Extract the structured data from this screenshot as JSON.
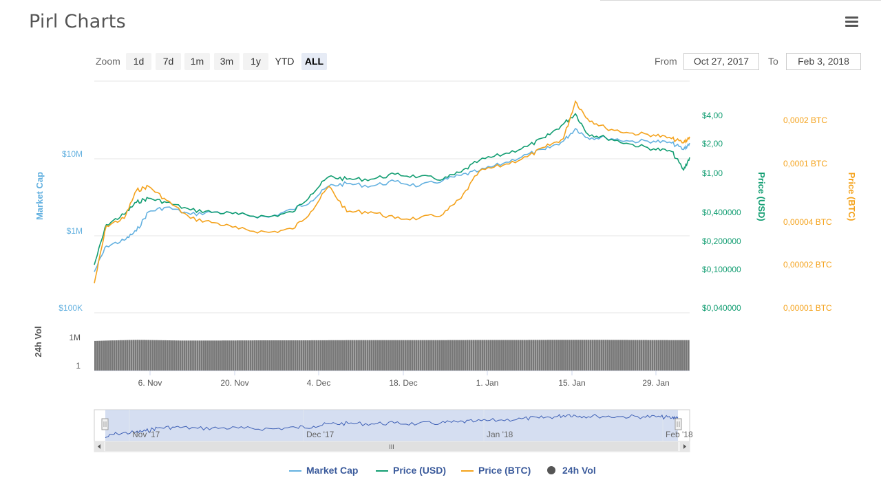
{
  "title": "Pirl Charts",
  "menu_icon": "hamburger-menu-icon",
  "zoom": {
    "label": "Zoom",
    "buttons": [
      "1d",
      "7d",
      "1m",
      "3m",
      "1y",
      "YTD",
      "ALL"
    ],
    "active": "ALL"
  },
  "range": {
    "from_label": "From",
    "from_value": "Oct 27, 2017",
    "to_label": "To",
    "to_value": "Feb 3, 2018"
  },
  "colors": {
    "market_cap": "#64b1e0",
    "price_usd": "#119d71",
    "price_btc": "#f4a21b",
    "volume": "#777777",
    "navigator_fill": "#c7d3ec",
    "legend_text": "#3a5a9b"
  },
  "axes": {
    "market_cap_title": "Market Cap",
    "market_cap_ticks": [
      "$10M",
      "$1M",
      "$100K"
    ],
    "price_usd_title": "Price (USD)",
    "price_usd_ticks": [
      "$4,00",
      "$2,00",
      "$1,00",
      "$0,400000",
      "$0,200000",
      "$0,100000",
      "$0,040000"
    ],
    "price_btc_title": "Price (BTC)",
    "price_btc_ticks": [
      "0,0002 BTC",
      "0,0001 BTC",
      "0,00004 BTC",
      "0,00002 BTC",
      "0,00001 BTC"
    ],
    "volume_title": "24h Vol",
    "volume_ticks": [
      "1M",
      "1"
    ],
    "x_ticks": [
      "6. Nov",
      "20. Nov",
      "4. Dec",
      "18. Dec",
      "1. Jan",
      "15. Jan",
      "29. Jan"
    ],
    "navigator_ticks": [
      "Nov '17",
      "Dec '17",
      "Jan '18",
      "Feb '18"
    ],
    "scrollbar_grip": "III"
  },
  "legend": [
    {
      "label": "Market Cap",
      "key": "market_cap"
    },
    {
      "label": "Price (USD)",
      "key": "price_usd"
    },
    {
      "label": "Price (BTC)",
      "key": "price_btc"
    },
    {
      "label": "24h Vol",
      "key": "volume"
    }
  ],
  "chart_data": {
    "type": "line",
    "x_range": [
      "2017-10-27",
      "2018-02-03"
    ],
    "y_scale": "log",
    "ylim_market_cap": [
      100000,
      50000000
    ],
    "ylim_price_usd": [
      0.04,
      8.0
    ],
    "ylim_price_btc": [
      1e-05,
      0.0004
    ],
    "series": [
      {
        "name": "Market Cap",
        "axis": "market_cap",
        "x": [
          "2017-10-27",
          "2017-10-29",
          "2017-11-01",
          "2017-11-03",
          "2017-11-05",
          "2017-11-08",
          "2017-11-12",
          "2017-11-16",
          "2017-11-20",
          "2017-11-25",
          "2017-11-29",
          "2017-12-02",
          "2017-12-05",
          "2017-12-08",
          "2017-12-12",
          "2017-12-16",
          "2017-12-20",
          "2017-12-24",
          "2017-12-27",
          "2017-12-30",
          "2018-01-03",
          "2018-01-07",
          "2018-01-10",
          "2018-01-13",
          "2018-01-15",
          "2018-01-17",
          "2018-01-20",
          "2018-01-24",
          "2018-01-28",
          "2018-01-31",
          "2018-02-02",
          "2018-02-03"
        ],
        "values": [
          300000,
          600000,
          700000,
          900000,
          1500000,
          1700000,
          1400000,
          1500000,
          1400000,
          1300000,
          1600000,
          2000000,
          3000000,
          3200000,
          3000000,
          3400000,
          3000000,
          3500000,
          4000000,
          4500000,
          5500000,
          7000000,
          8000000,
          10000000,
          14000000,
          11000000,
          11000000,
          10000000,
          10000000,
          9500000,
          8000000,
          9500000
        ]
      },
      {
        "name": "Price (USD)",
        "axis": "price_usd",
        "x": [
          "2017-10-27",
          "2017-10-29",
          "2017-11-01",
          "2017-11-03",
          "2017-11-05",
          "2017-11-08",
          "2017-11-12",
          "2017-11-16",
          "2017-11-20",
          "2017-11-25",
          "2017-11-29",
          "2017-12-02",
          "2017-12-05",
          "2017-12-08",
          "2017-12-12",
          "2017-12-16",
          "2017-12-20",
          "2017-12-24",
          "2017-12-27",
          "2017-12-30",
          "2018-01-03",
          "2018-01-07",
          "2018-01-10",
          "2018-01-13",
          "2018-01-15",
          "2018-01-17",
          "2018-01-20",
          "2018-01-24",
          "2018-01-28",
          "2018-01-31",
          "2018-02-02",
          "2018-02-03"
        ],
        "values": [
          0.12,
          0.3,
          0.38,
          0.5,
          0.55,
          0.5,
          0.42,
          0.4,
          0.38,
          0.36,
          0.4,
          0.6,
          0.9,
          0.85,
          0.85,
          0.95,
          0.9,
          0.85,
          1.0,
          1.3,
          1.5,
          1.8,
          2.2,
          3.0,
          3.8,
          2.4,
          2.2,
          1.9,
          1.7,
          1.6,
          1.05,
          1.4
        ]
      },
      {
        "name": "Price (BTC)",
        "axis": "price_btc",
        "x": [
          "2017-10-27",
          "2017-10-29",
          "2017-11-01",
          "2017-11-03",
          "2017-11-05",
          "2017-11-08",
          "2017-11-12",
          "2017-11-16",
          "2017-11-20",
          "2017-11-25",
          "2017-11-29",
          "2017-12-02",
          "2017-12-05",
          "2017-12-08",
          "2017-12-12",
          "2017-12-16",
          "2017-12-20",
          "2017-12-24",
          "2017-12-27",
          "2017-12-30",
          "2018-01-03",
          "2018-01-07",
          "2018-01-10",
          "2018-01-13",
          "2018-01-15",
          "2018-01-17",
          "2018-01-20",
          "2018-01-24",
          "2018-01-28",
          "2018-01-31",
          "2018-02-02",
          "2018-02-03"
        ],
        "values": [
          1.6e-05,
          4e-05,
          4.5e-05,
          7e-05,
          7.5e-05,
          6e-05,
          4.5e-05,
          4.2e-05,
          3.8e-05,
          3.6e-05,
          3.8e-05,
          5e-05,
          7.5e-05,
          5e-05,
          5e-05,
          4.5e-05,
          4.5e-05,
          4.8e-05,
          6.2e-05,
          9.5e-05,
          0.000105,
          0.00012,
          0.00014,
          0.00016,
          0.00029,
          0.00022,
          0.00019,
          0.000175,
          0.00017,
          0.00016,
          0.00015,
          0.000165
        ]
      },
      {
        "name": "24h Vol",
        "axis": "volume",
        "x": [
          "2017-10-27",
          "2017-11-03",
          "2017-11-10",
          "2017-11-17",
          "2017-11-24",
          "2017-12-01",
          "2017-12-08",
          "2017-12-15",
          "2017-12-22",
          "2017-12-29",
          "2018-01-05",
          "2018-01-12",
          "2018-01-19",
          "2018-01-26",
          "2018-02-03"
        ],
        "values": [
          500000,
          800000,
          600000,
          600000,
          650000,
          650000,
          700000,
          700000,
          700000,
          750000,
          750000,
          800000,
          800000,
          750000,
          700000
        ]
      }
    ]
  }
}
